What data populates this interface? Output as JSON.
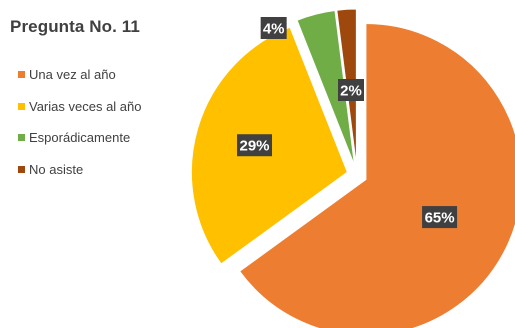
{
  "chart_data": {
    "type": "pie",
    "title": "Pregunta No. 11",
    "categories": [
      "Una vez al año",
      "Varias veces al año",
      "Esporádicamente",
      "No asiste"
    ],
    "values": [
      65,
      29,
      4,
      2
    ],
    "labels": [
      "65%",
      "29%",
      "4%",
      "2%"
    ],
    "colors": [
      "#ED7D31",
      "#FFC000",
      "#70AD47",
      "#9E480E"
    ],
    "exploded": true,
    "legend_position": "left"
  }
}
